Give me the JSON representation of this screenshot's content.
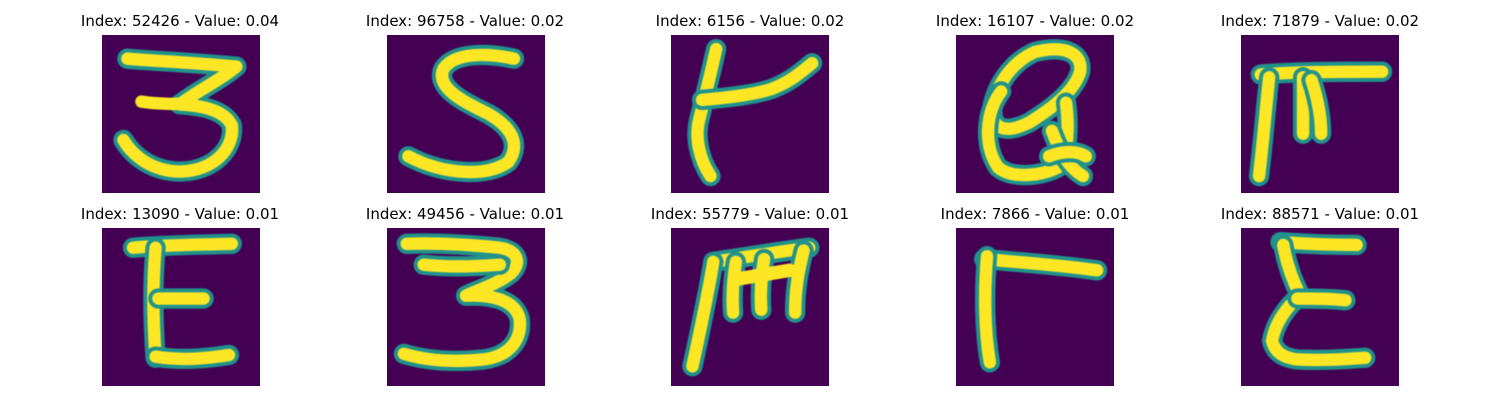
{
  "colors": {
    "background": "#ffffff",
    "glyph_background": "#440154",
    "glyph_edge": "#21918c",
    "glyph_stroke": "#fde725"
  },
  "panels": [
    {
      "title": "Index: 52426 - Value: 0.04"
    },
    {
      "title": "Index: 96758 - Value: 0.02"
    },
    {
      "title": "Index: 6156 - Value: 0.02"
    },
    {
      "title": "Index: 16107 - Value: 0.02"
    },
    {
      "title": "Index: 71879 - Value: 0.02"
    },
    {
      "title": "Index: 13090 - Value: 0.01"
    },
    {
      "title": "Index: 49456 - Value: 0.01"
    },
    {
      "title": "Index: 55779 - Value: 0.01"
    },
    {
      "title": "Index: 7866 - Value: 0.01"
    },
    {
      "title": "Index: 88571 - Value: 0.01"
    }
  ]
}
